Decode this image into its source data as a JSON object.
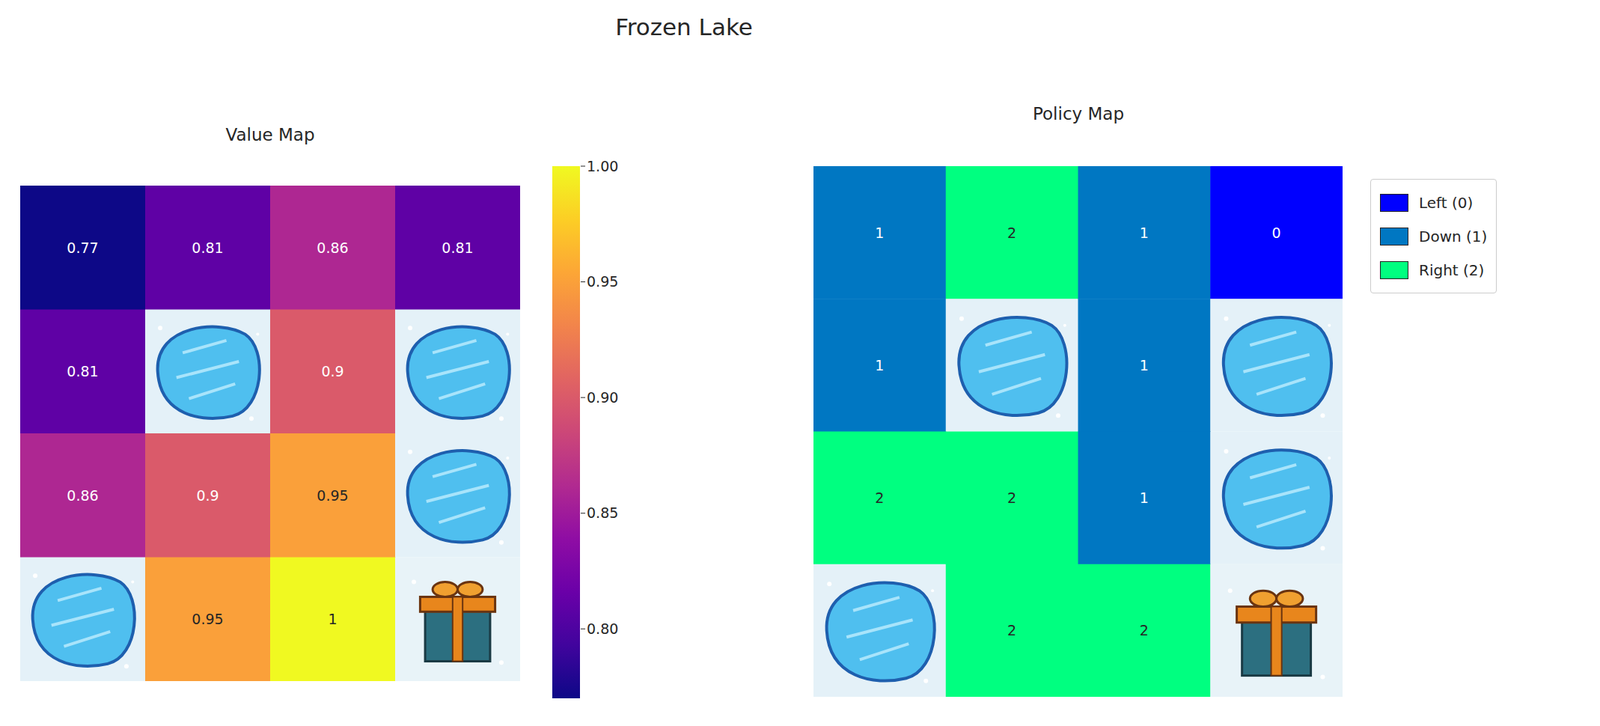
{
  "title": "Frozen Lake",
  "chart_data": [
    {
      "type": "heatmap",
      "title": "Value Map",
      "cells": [
        [
          0.77,
          0.81,
          0.86,
          0.81
        ],
        [
          0.81,
          null,
          0.9,
          null
        ],
        [
          0.86,
          0.9,
          0.95,
          null
        ],
        [
          null,
          0.95,
          1,
          null
        ]
      ],
      "data_labels": true,
      "colorbar": {
        "range": [
          0.77,
          1.0
        ],
        "ticks": [
          {
            "value": 0.8,
            "label": "0.80"
          },
          {
            "value": 0.85,
            "label": "0.85"
          },
          {
            "value": 0.9,
            "label": "0.90"
          },
          {
            "value": 0.95,
            "label": "0.95"
          },
          {
            "value": 1.0,
            "label": "1.00"
          }
        ]
      }
    },
    {
      "type": "heatmap",
      "title": "Policy Map",
      "cells": [
        [
          1,
          2,
          1,
          0
        ],
        [
          1,
          null,
          1,
          null
        ],
        [
          2,
          2,
          1,
          null
        ],
        [
          null,
          2,
          2,
          null
        ]
      ],
      "data_labels": true,
      "categories": [
        {
          "value": 0,
          "label": "Left (0)"
        },
        {
          "value": 1,
          "label": "Down (1)"
        },
        {
          "value": 2,
          "label": "Right (2)"
        }
      ],
      "colors": [
        "#0000ff",
        "#0077c2",
        "#00ff80"
      ],
      "legend": "right"
    }
  ]
}
